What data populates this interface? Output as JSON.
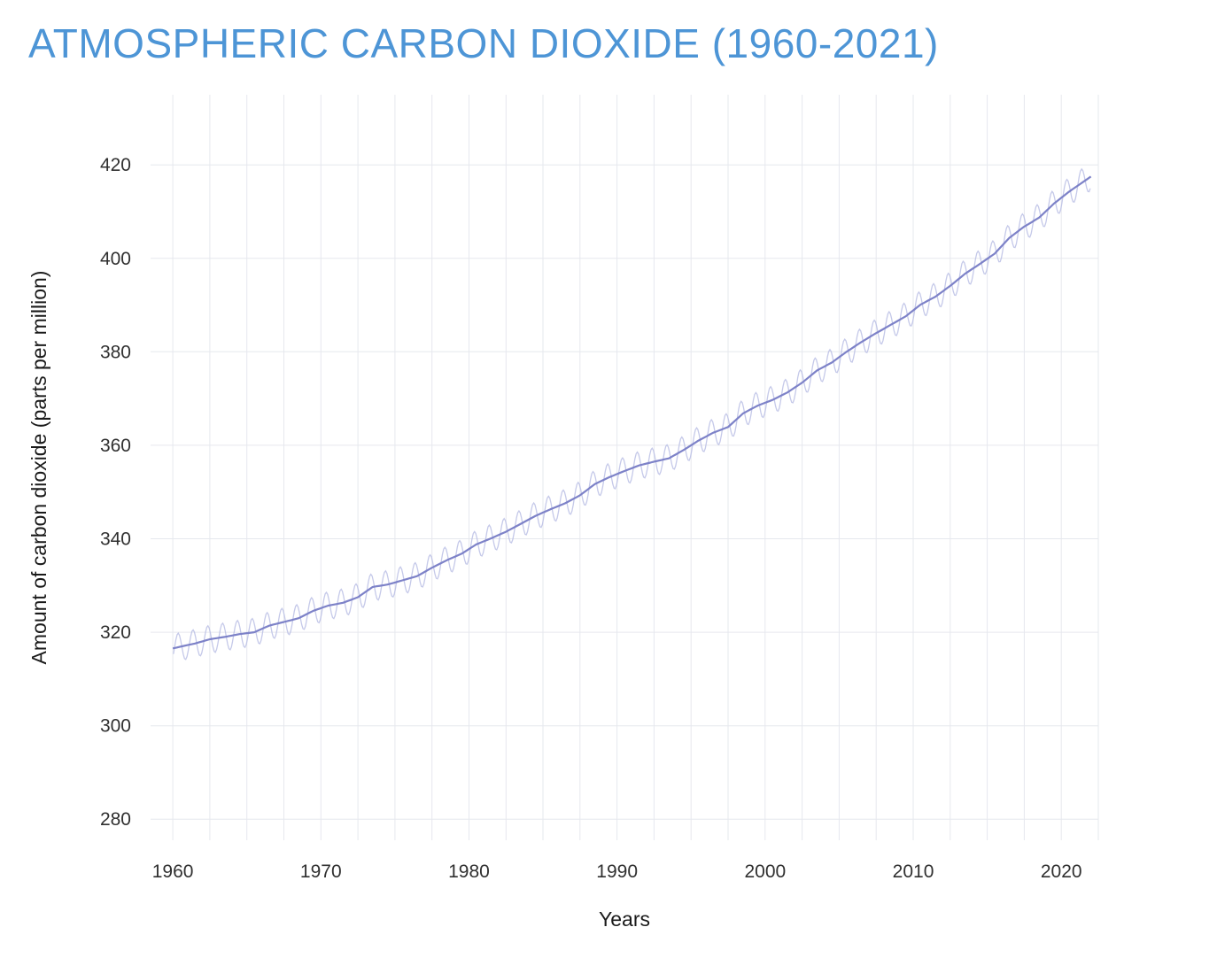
{
  "header": {
    "title": "ATMOSPHERIC CARBON DIOXIDE (1960-2021)",
    "title_color": "#4d95d6"
  },
  "chart_data": {
    "type": "line",
    "title": "ATMOSPHERIC CARBON DIOXIDE (1960-2021)",
    "xlabel": "Years",
    "ylabel": "Amount of carbon dioxide (parts per million)",
    "xlim": [
      1958.5,
      2022.5
    ],
    "ylim": [
      275.5,
      435
    ],
    "x_ticks": [
      1960,
      1970,
      1980,
      1990,
      2000,
      2010,
      2020
    ],
    "y_ticks": [
      280,
      300,
      320,
      340,
      360,
      380,
      400,
      420
    ],
    "x_grid_step_years": 2.5,
    "grid": true,
    "legend": "none",
    "colors": {
      "grid": "#e6e8ee",
      "tick_label": "#303030",
      "axis_label": "#1a1a1a",
      "trend_line": "#7d82c8",
      "seasonal_line": "#b7bbe3"
    },
    "series": [
      {
        "name": "Monthly average (seasonal cycle)",
        "role": "seasonal",
        "seasonal_amplitude_ppm": 3.0
      },
      {
        "name": "Annual mean trend",
        "role": "trend",
        "years": [
          1960,
          1961,
          1962,
          1963,
          1964,
          1965,
          1966,
          1967,
          1968,
          1969,
          1970,
          1971,
          1972,
          1973,
          1974,
          1975,
          1976,
          1977,
          1978,
          1979,
          1980,
          1981,
          1982,
          1983,
          1984,
          1985,
          1986,
          1987,
          1988,
          1989,
          1990,
          1991,
          1992,
          1993,
          1994,
          1995,
          1996,
          1997,
          1998,
          1999,
          2000,
          2001,
          2002,
          2003,
          2004,
          2005,
          2006,
          2007,
          2008,
          2009,
          2010,
          2011,
          2012,
          2013,
          2014,
          2015,
          2016,
          2017,
          2018,
          2019,
          2020,
          2021
        ],
        "values": [
          316.9,
          317.6,
          318.5,
          319.0,
          319.6,
          320.0,
          321.4,
          322.2,
          323.0,
          324.6,
          325.7,
          326.3,
          327.5,
          329.7,
          330.2,
          331.1,
          332.0,
          333.8,
          335.4,
          336.8,
          338.8,
          340.1,
          341.5,
          343.2,
          344.9,
          346.3,
          347.6,
          349.3,
          351.7,
          353.2,
          354.5,
          355.7,
          356.5,
          357.2,
          359.0,
          361.0,
          362.7,
          363.9,
          366.8,
          368.5,
          369.7,
          371.3,
          373.4,
          376.0,
          377.7,
          380.0,
          382.1,
          384.0,
          385.8,
          387.6,
          390.1,
          391.8,
          394.1,
          396.7,
          398.8,
          401.0,
          404.4,
          406.8,
          408.7,
          411.7,
          414.2,
          416.4
        ]
      }
    ]
  }
}
